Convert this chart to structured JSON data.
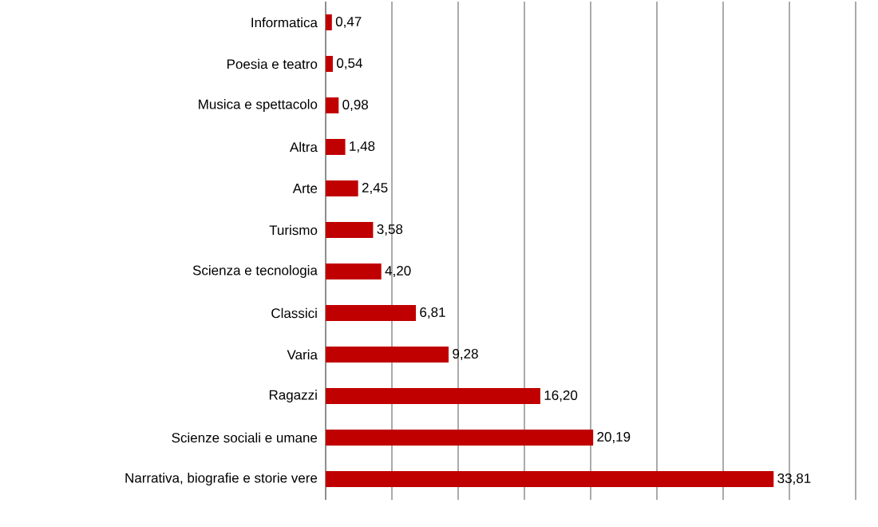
{
  "chart_data": {
    "type": "bar",
    "orientation": "horizontal",
    "categories": [
      "Informatica",
      "Poesia e teatro",
      "Musica e spettacolo",
      "Altra",
      "Arte",
      "Turismo",
      "Scienza e tecnologia",
      "Classici",
      "Varia",
      "Ragazzi",
      "Scienze sociali e umane",
      "Narrativa, biografie e storie vere"
    ],
    "values": [
      0.47,
      0.54,
      0.98,
      1.48,
      2.45,
      3.58,
      4.2,
      6.81,
      9.28,
      16.2,
      20.19,
      33.81
    ],
    "value_labels": [
      "0,47",
      "0,54",
      "0,98",
      "1,48",
      "2,45",
      "3,58",
      "4,20",
      "6,81",
      "9,28",
      "16,20",
      "20,19",
      "33,81"
    ],
    "color": "#c00000",
    "xlim": [
      0,
      40
    ],
    "xticks": [
      {
        "value": 0,
        "label": null
      },
      {
        "value": 5,
        "label": null
      },
      {
        "value": 10,
        "label": null
      },
      {
        "value": 15,
        "label": null
      },
      {
        "value": 20,
        "label": null
      },
      {
        "value": 25,
        "label": null
      },
      {
        "value": 30,
        "label": null
      },
      {
        "value": 35,
        "label": null
      },
      {
        "value": 40,
        "label": null
      }
    ],
    "grid": "x",
    "tick_labels": "y"
  }
}
